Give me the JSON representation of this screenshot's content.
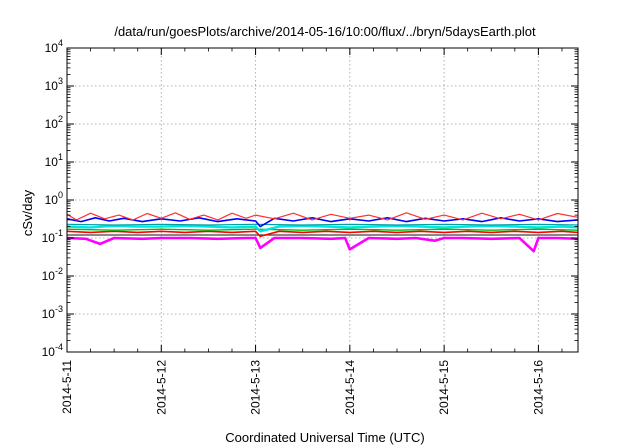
{
  "chart_data": {
    "type": "line",
    "title": "/data/run/goesPlots/archive/2014-05-16/10:00/flux/../bryn/5daysEarth.plot",
    "xlabel": "Coordinated Universal Time (UTC)",
    "ylabel": "cSv/day",
    "yscale": "log",
    "ylim": [
      0.0001,
      10000
    ],
    "xlim": [
      "2014-05-11",
      "2014-05-16 10:00"
    ],
    "xlim_days": [
      0,
      5.42
    ],
    "x_ticks": [
      {
        "label": "2014-5-11",
        "day": 0
      },
      {
        "label": "2014-5-12",
        "day": 1
      },
      {
        "label": "2014-5-13",
        "day": 2
      },
      {
        "label": "2014-5-14",
        "day": 3
      },
      {
        "label": "2014-5-15",
        "day": 4
      },
      {
        "label": "2014-5-16",
        "day": 5
      }
    ],
    "y_ticks": [
      {
        "base": "10",
        "exp": "-4",
        "value": 0.0001
      },
      {
        "base": "10",
        "exp": "-3",
        "value": 0.001
      },
      {
        "base": "10",
        "exp": "-2",
        "value": 0.01
      },
      {
        "base": "10",
        "exp": "-1",
        "value": 0.1
      },
      {
        "base": "10",
        "exp": "0",
        "value": 1
      },
      {
        "base": "10",
        "exp": "1",
        "value": 10
      },
      {
        "base": "10",
        "exp": "2",
        "value": 100
      },
      {
        "base": "10",
        "exp": "3",
        "value": 1000
      },
      {
        "base": "10",
        "exp": "4",
        "value": 10000
      }
    ],
    "grid": true,
    "legend": "none",
    "series": [
      {
        "color": "#ff00ff",
        "width": 2.6,
        "day": [
          0,
          0.2,
          0.35,
          0.5,
          0.8,
          1.0,
          1.3,
          1.6,
          1.9,
          2.0,
          2.05,
          2.2,
          2.5,
          2.8,
          2.95,
          3.0,
          3.2,
          3.5,
          3.7,
          3.9,
          4.0,
          4.2,
          4.5,
          4.8,
          4.95,
          5.0,
          5.2,
          5.42
        ],
        "value": [
          0.1,
          0.095,
          0.07,
          0.1,
          0.095,
          0.1,
          0.1,
          0.095,
          0.1,
          0.1,
          0.055,
          0.1,
          0.1,
          0.095,
          0.1,
          0.05,
          0.1,
          0.095,
          0.1,
          0.085,
          0.1,
          0.1,
          0.095,
          0.1,
          0.045,
          0.1,
          0.1,
          0.095
        ]
      },
      {
        "color": "#404040",
        "width": 1.2,
        "day": [
          0,
          0.5,
          1.0,
          1.5,
          2.0,
          2.5,
          3.0,
          3.5,
          4.0,
          4.5,
          5.0,
          5.42
        ],
        "value": [
          0.12,
          0.12,
          0.12,
          0.12,
          0.12,
          0.12,
          0.12,
          0.12,
          0.12,
          0.12,
          0.12,
          0.12
        ]
      },
      {
        "color": "#ff0000",
        "width": 1.6,
        "day": [
          0,
          0.25,
          0.5,
          0.75,
          1.0,
          1.25,
          1.5,
          1.75,
          2.0,
          2.05,
          2.25,
          2.5,
          2.75,
          3.0,
          3.25,
          3.5,
          3.75,
          4.0,
          4.25,
          4.5,
          4.75,
          5.0,
          5.25,
          5.42
        ],
        "value": [
          0.15,
          0.14,
          0.15,
          0.14,
          0.15,
          0.14,
          0.15,
          0.14,
          0.15,
          0.11,
          0.15,
          0.14,
          0.15,
          0.14,
          0.15,
          0.14,
          0.15,
          0.14,
          0.15,
          0.14,
          0.15,
          0.14,
          0.15,
          0.14
        ]
      },
      {
        "color": "#00c000",
        "width": 1.4,
        "day": [
          0,
          0.5,
          1.0,
          1.5,
          2.0,
          2.5,
          3.0,
          3.5,
          4.0,
          4.5,
          5.0,
          5.42
        ],
        "value": [
          0.17,
          0.16,
          0.17,
          0.16,
          0.17,
          0.16,
          0.17,
          0.16,
          0.17,
          0.16,
          0.17,
          0.16
        ]
      },
      {
        "color": "#00e5e5",
        "width": 2.4,
        "day": [
          0,
          0.25,
          0.5,
          0.75,
          1.0,
          1.25,
          1.5,
          1.75,
          2.0,
          2.05,
          2.25,
          2.5,
          2.75,
          3.0,
          3.25,
          3.5,
          3.75,
          4.0,
          4.25,
          4.5,
          4.75,
          5.0,
          5.25,
          5.42
        ],
        "value": [
          0.2,
          0.19,
          0.21,
          0.2,
          0.2,
          0.21,
          0.2,
          0.19,
          0.2,
          0.15,
          0.2,
          0.21,
          0.2,
          0.19,
          0.2,
          0.21,
          0.2,
          0.19,
          0.2,
          0.21,
          0.2,
          0.19,
          0.2,
          0.19
        ]
      },
      {
        "color": "#00a0a0",
        "width": 1.2,
        "day": [
          0,
          0.5,
          1.0,
          1.5,
          2.0,
          2.5,
          3.0,
          3.5,
          4.0,
          4.5,
          5.0,
          5.42
        ],
        "value": [
          0.23,
          0.22,
          0.23,
          0.22,
          0.23,
          0.22,
          0.23,
          0.22,
          0.23,
          0.22,
          0.23,
          0.22
        ]
      },
      {
        "color": "#0000ff",
        "width": 1.6,
        "day": [
          0,
          0.15,
          0.3,
          0.45,
          0.6,
          0.8,
          1.0,
          1.2,
          1.4,
          1.6,
          1.8,
          2.0,
          2.05,
          2.2,
          2.4,
          2.6,
          2.8,
          3.0,
          3.2,
          3.4,
          3.6,
          3.8,
          4.0,
          4.2,
          4.4,
          4.6,
          4.8,
          5.0,
          5.2,
          5.42
        ],
        "value": [
          0.32,
          0.27,
          0.34,
          0.28,
          0.33,
          0.27,
          0.32,
          0.28,
          0.34,
          0.27,
          0.32,
          0.28,
          0.2,
          0.33,
          0.28,
          0.34,
          0.27,
          0.32,
          0.28,
          0.34,
          0.27,
          0.33,
          0.28,
          0.32,
          0.27,
          0.34,
          0.28,
          0.32,
          0.27,
          0.3
        ]
      },
      {
        "color": "#ff3030",
        "width": 1.2,
        "day": [
          0,
          0.1,
          0.25,
          0.4,
          0.55,
          0.7,
          0.85,
          1.0,
          1.15,
          1.3,
          1.45,
          1.6,
          1.75,
          1.9,
          2.0,
          2.2,
          2.4,
          2.6,
          2.8,
          3.0,
          3.2,
          3.4,
          3.6,
          3.8,
          4.0,
          4.2,
          4.4,
          4.6,
          4.8,
          5.0,
          5.2,
          5.42
        ],
        "value": [
          0.42,
          0.3,
          0.45,
          0.32,
          0.4,
          0.3,
          0.44,
          0.33,
          0.46,
          0.31,
          0.4,
          0.3,
          0.45,
          0.33,
          0.4,
          0.32,
          0.45,
          0.3,
          0.42,
          0.33,
          0.4,
          0.3,
          0.46,
          0.31,
          0.4,
          0.3,
          0.45,
          0.32,
          0.42,
          0.3,
          0.44,
          0.35
        ]
      }
    ]
  }
}
